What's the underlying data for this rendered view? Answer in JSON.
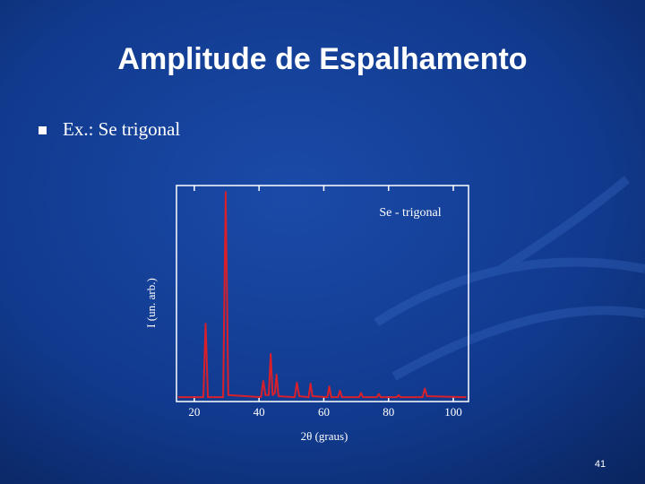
{
  "slide": {
    "title": "Amplitude de Espalhamento",
    "bullet": "Ex.: Se trigonal",
    "page_number": "41"
  },
  "chart_data": {
    "type": "line",
    "x_label": "2θ (graus)",
    "y_label": "I (un. arb.)",
    "xlim": [
      14.5,
      104.7
    ],
    "xticks": [
      20,
      40,
      60,
      80,
      100
    ],
    "ylim": [
      0,
      100
    ],
    "x": [
      15,
      22.8,
      23.5,
      24.2,
      28.9,
      29.7,
      30.5,
      40.6,
      41.3,
      42,
      43,
      43.6,
      44.2,
      44.9,
      45.4,
      46,
      51,
      51.7,
      52.4,
      55.3,
      55.9,
      56.5,
      61.1,
      61.7,
      62.3,
      64.4,
      65,
      65.6,
      70.9,
      71.5,
      72.1,
      76.4,
      77,
      77.6,
      82.5,
      83.1,
      83.7,
      90.5,
      91.2,
      91.9,
      104
    ],
    "series": [
      {
        "name": "Se - trigonal",
        "color": "#d8202c",
        "values": [
          2,
          2,
          36,
          2,
          2,
          97,
          3,
          2,
          9.5,
          3,
          3,
          22,
          3,
          4,
          12.5,
          2.5,
          2,
          8.7,
          2.5,
          2,
          8.3,
          2.5,
          2,
          7,
          2,
          2,
          5,
          2,
          2,
          4,
          2,
          2,
          3.5,
          2,
          2,
          3,
          2,
          2,
          6,
          2.5,
          2
        ]
      }
    ]
  }
}
